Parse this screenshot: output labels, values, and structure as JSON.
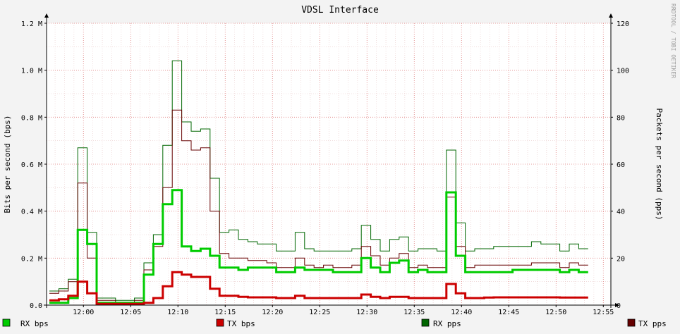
{
  "chart_data": {
    "type": "line",
    "title": "VDSL Interface",
    "ylabel_left": "Bits per second (bps)",
    "ylabel_right": "Packets per second (pps)",
    "watermark": "RRDTOOL / TOBI OETIKER",
    "x_ticks": [
      "12:00",
      "12:05",
      "12:10",
      "12:15",
      "12:20",
      "12:25",
      "12:30",
      "12:35",
      "12:40",
      "12:45",
      "12:50",
      "12:55"
    ],
    "x_tick_minutes": [
      720,
      725,
      730,
      735,
      740,
      745,
      750,
      755,
      760,
      765,
      770,
      775
    ],
    "x_range_minutes": [
      716.1,
      775.8
    ],
    "step_minutes": 1,
    "series_start_minute": 716.1,
    "y_left_ticks": [
      "0.0",
      "0.2 M",
      "0.4 M",
      "0.6 M",
      "0.8 M",
      "1.0 M",
      "1.2 M"
    ],
    "y_left_tick_values": [
      0,
      0.2,
      0.4,
      0.6,
      0.8,
      1.0,
      1.2
    ],
    "y_left_range": [
      0,
      1.2
    ],
    "y_left_unit": "M bps",
    "y_right_ticks": [
      "0",
      "20",
      "40",
      "60",
      "80",
      "100",
      "120"
    ],
    "y_right_tick_values": [
      0,
      20,
      40,
      60,
      80,
      100,
      120
    ],
    "y_right_range": [
      0,
      120
    ],
    "grid": true,
    "legend_position": "bottom",
    "series": [
      {
        "name": "RX pps",
        "axis": "right",
        "color": "#006600",
        "values": [
          6,
          7,
          11,
          67,
          31,
          3,
          3,
          2,
          2,
          3,
          18,
          30,
          68,
          104,
          78,
          74,
          75,
          54,
          31,
          32,
          28,
          27,
          26,
          26,
          23,
          23,
          31,
          24,
          23,
          23,
          23,
          23,
          24,
          34,
          28,
          23,
          28,
          29,
          23,
          24,
          24,
          23,
          66,
          35,
          23,
          24,
          24,
          25,
          25,
          25,
          25,
          27,
          26,
          26,
          23,
          26,
          24
        ]
      },
      {
        "name": "TX pps",
        "axis": "right",
        "color": "#660000",
        "values": [
          5,
          6,
          10,
          52,
          20,
          2,
          2,
          1,
          1,
          2,
          15,
          25,
          50,
          83,
          70,
          66,
          67,
          40,
          22,
          20,
          20,
          19,
          19,
          18,
          16,
          16,
          20,
          17,
          16,
          17,
          16,
          16,
          17,
          25,
          21,
          17,
          20,
          22,
          16,
          17,
          16,
          16,
          46,
          25,
          16,
          17,
          17,
          17,
          17,
          17,
          17,
          18,
          18,
          18,
          16,
          18,
          17
        ]
      },
      {
        "name": "RX bps",
        "axis": "left",
        "color": "#00cc00",
        "values": [
          0.01,
          0.01,
          0.03,
          0.32,
          0.26,
          0.01,
          0.01,
          0.01,
          0.01,
          0.01,
          0.13,
          0.26,
          0.43,
          0.49,
          0.25,
          0.23,
          0.24,
          0.21,
          0.16,
          0.16,
          0.15,
          0.16,
          0.16,
          0.16,
          0.14,
          0.14,
          0.16,
          0.15,
          0.15,
          0.15,
          0.14,
          0.14,
          0.14,
          0.2,
          0.16,
          0.14,
          0.18,
          0.19,
          0.14,
          0.15,
          0.14,
          0.14,
          0.48,
          0.21,
          0.14,
          0.14,
          0.14,
          0.14,
          0.14,
          0.15,
          0.15,
          0.15,
          0.15,
          0.15,
          0.14,
          0.15,
          0.14
        ]
      },
      {
        "name": "TX bps",
        "axis": "left",
        "color": "#cc0000",
        "values": [
          0.02,
          0.025,
          0.04,
          0.1,
          0.05,
          0.005,
          0.005,
          0.005,
          0.005,
          0.005,
          0.01,
          0.03,
          0.08,
          0.14,
          0.13,
          0.12,
          0.12,
          0.07,
          0.04,
          0.04,
          0.035,
          0.033,
          0.033,
          0.033,
          0.03,
          0.03,
          0.04,
          0.03,
          0.03,
          0.03,
          0.03,
          0.03,
          0.03,
          0.045,
          0.035,
          0.03,
          0.035,
          0.035,
          0.03,
          0.03,
          0.03,
          0.03,
          0.09,
          0.05,
          0.03,
          0.03,
          0.032,
          0.033,
          0.033,
          0.033,
          0.033,
          0.033,
          0.033,
          0.033,
          0.032,
          0.032,
          0.032
        ]
      }
    ],
    "legend": [
      {
        "label": "RX bps",
        "color": "#00cc00"
      },
      {
        "label": "TX bps",
        "color": "#cc0000"
      },
      {
        "label": "RX pps",
        "color": "#006600"
      },
      {
        "label": "TX pps",
        "color": "#660000"
      }
    ]
  }
}
